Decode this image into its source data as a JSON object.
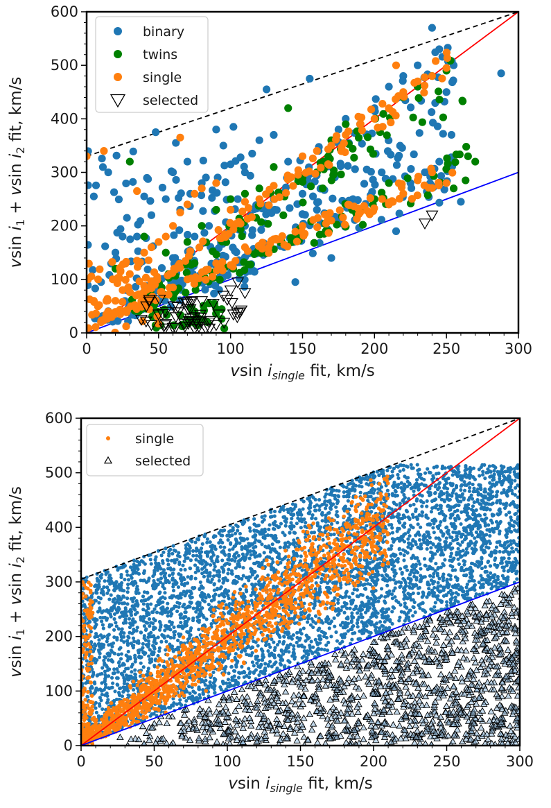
{
  "chart_data": [
    {
      "type": "scatter",
      "xlabel_main": "v",
      "xlabel_rest": "sin i",
      "xlabel_sub": "single",
      "xlabel_tail": " fit, km/s",
      "ylabel_parts": [
        "v",
        "sin i",
        "1",
        " + ",
        "v",
        "sin i",
        "2",
        " fit, km/s"
      ],
      "xlim": [
        0,
        300
      ],
      "ylim": [
        0,
        600
      ],
      "xticks": [
        "0",
        "50",
        "100",
        "150",
        "200",
        "250",
        "300"
      ],
      "yticks": [
        "0",
        "100",
        "200",
        "300",
        "400",
        "500",
        "600"
      ],
      "legend_position": "upper left",
      "legend": [
        {
          "label": "binary",
          "marker": "circle",
          "color": "#1f77b4"
        },
        {
          "label": "twins",
          "marker": "circle",
          "color": "#008000"
        },
        {
          "label": "single",
          "marker": "circle",
          "color": "#ff7f0e"
        },
        {
          "label": "selected",
          "marker": "triangle-down-open",
          "color": "#000000"
        }
      ],
      "lines": [
        {
          "name": "y=2x",
          "color": "#ff0000",
          "style": "solid",
          "points": [
            [
              0,
              0
            ],
            [
              300,
              600
            ]
          ]
        },
        {
          "name": "y=x",
          "color": "#0000ff",
          "style": "solid",
          "points": [
            [
              0,
              0
            ],
            [
              300,
              300
            ]
          ]
        },
        {
          "name": "upper bound",
          "color": "#000000",
          "style": "dashed",
          "points": [
            [
              0,
              330
            ],
            [
              300,
              600
            ]
          ]
        }
      ],
      "series": [
        {
          "name": "binary",
          "color": "#1f77b4",
          "points": [
            [
              5,
              255
            ],
            [
              10,
              95
            ],
            [
              15,
              300
            ],
            [
              20,
              150
            ],
            [
              25,
              180
            ],
            [
              28,
              215
            ],
            [
              35,
              180
            ],
            [
              40,
              255
            ],
            [
              45,
              220
            ],
            [
              48,
              375
            ],
            [
              55,
              250
            ],
            [
              60,
              300
            ],
            [
              62,
              355
            ],
            [
              65,
              230
            ],
            [
              70,
              320
            ],
            [
              72,
              260
            ],
            [
              80,
              280
            ],
            [
              85,
              200
            ],
            [
              90,
              380
            ],
            [
              95,
              350
            ],
            [
              100,
              315
            ],
            [
              102,
              385
            ],
            [
              105,
              250
            ],
            [
              110,
              300
            ],
            [
              115,
              335
            ],
            [
              120,
              360
            ],
            [
              125,
              455
            ],
            [
              130,
              370
            ],
            [
              140,
              320
            ],
            [
              145,
              95
            ],
            [
              150,
              260
            ],
            [
              155,
              475
            ],
            [
              160,
              300
            ],
            [
              170,
              140
            ],
            [
              175,
              380
            ],
            [
              180,
              400
            ],
            [
              190,
              390
            ],
            [
              200,
              420
            ],
            [
              210,
              460
            ],
            [
              215,
              190
            ],
            [
              220,
              480
            ],
            [
              230,
              500
            ],
            [
              240,
              570
            ],
            [
              245,
              530
            ],
            [
              250,
              450
            ],
            [
              255,
              500
            ],
            [
              260,
              245
            ],
            [
              288,
              485
            ],
            [
              60,
              140
            ],
            [
              75,
              180
            ],
            [
              110,
              200
            ],
            [
              130,
              250
            ],
            [
              160,
              230
            ],
            [
              185,
              250
            ],
            [
              205,
              300
            ],
            [
              225,
              280
            ],
            [
              235,
              300
            ],
            [
              245,
              320
            ]
          ]
        },
        {
          "name": "twins",
          "color": "#008000",
          "points": [
            [
              20,
              120
            ],
            [
              30,
              320
            ],
            [
              40,
              180
            ],
            [
              55,
              150
            ],
            [
              70,
              170
            ],
            [
              80,
              200
            ],
            [
              90,
              230
            ],
            [
              100,
              250
            ],
            [
              110,
              260
            ],
            [
              120,
              270
            ],
            [
              130,
              310
            ],
            [
              140,
              420
            ],
            [
              150,
              290
            ],
            [
              160,
              300
            ],
            [
              170,
              360
            ],
            [
              180,
              390
            ],
            [
              190,
              230
            ],
            [
              200,
              250
            ],
            [
              210,
              280
            ],
            [
              220,
              440
            ],
            [
              230,
              460
            ],
            [
              240,
              480
            ],
            [
              250,
              490
            ],
            [
              255,
              270
            ],
            [
              265,
              330
            ],
            [
              270,
              320
            ],
            [
              75,
              40
            ],
            [
              80,
              25
            ],
            [
              85,
              55
            ],
            [
              90,
              45
            ]
          ]
        },
        {
          "name": "single",
          "color": "#ff7f0e",
          "points": [
            [
              0,
              330
            ],
            [
              5,
              60
            ],
            [
              8,
              100
            ],
            [
              10,
              20
            ],
            [
              12,
              340
            ],
            [
              15,
              40
            ],
            [
              20,
              60
            ],
            [
              25,
              80
            ],
            [
              30,
              110
            ],
            [
              35,
              135
            ],
            [
              40,
              150
            ],
            [
              45,
              160
            ],
            [
              50,
              170
            ],
            [
              55,
              180
            ],
            [
              60,
              200
            ],
            [
              65,
              225
            ],
            [
              70,
              240
            ],
            [
              75,
              260
            ],
            [
              80,
              270
            ],
            [
              90,
              280
            ],
            [
              100,
              230
            ],
            [
              110,
              245
            ],
            [
              120,
              250
            ],
            [
              130,
              275
            ],
            [
              140,
              290
            ],
            [
              150,
              330
            ],
            [
              160,
              340
            ],
            [
              170,
              350
            ],
            [
              180,
              370
            ],
            [
              190,
              390
            ],
            [
              200,
              400
            ],
            [
              210,
              420
            ],
            [
              220,
              450
            ],
            [
              230,
              470
            ],
            [
              240,
              480
            ],
            [
              250,
              495
            ],
            [
              45,
              95
            ],
            [
              60,
              85
            ],
            [
              70,
              100
            ],
            [
              90,
              130
            ],
            [
              110,
              160
            ],
            [
              130,
              175
            ],
            [
              150,
              200
            ],
            [
              170,
              210
            ],
            [
              190,
              225
            ],
            [
              210,
              240
            ],
            [
              220,
              260
            ],
            [
              230,
              285
            ],
            [
              240,
              300
            ],
            [
              250,
              280
            ],
            [
              35,
              265
            ],
            [
              65,
              365
            ],
            [
              215,
              500
            ]
          ]
        },
        {
          "name": "selected",
          "color": "#000000",
          "points": [
            [
              38,
              25
            ],
            [
              45,
              15
            ],
            [
              50,
              35
            ],
            [
              55,
              40
            ],
            [
              62,
              30
            ],
            [
              68,
              18
            ],
            [
              72,
              45
            ],
            [
              75,
              30
            ],
            [
              78,
              12
            ],
            [
              85,
              20
            ],
            [
              88,
              55
            ],
            [
              92,
              35
            ],
            [
              95,
              70
            ],
            [
              100,
              80
            ],
            [
              105,
              95
            ],
            [
              110,
              75
            ],
            [
              235,
              205
            ],
            [
              240,
              220
            ],
            [
              60,
              10
            ],
            [
              70,
              55
            ],
            [
              80,
              60
            ],
            [
              90,
              15
            ]
          ]
        }
      ]
    },
    {
      "type": "scatter",
      "xlabel_main": "v",
      "xlabel_rest": "sin i",
      "xlabel_sub": "single",
      "xlabel_tail": " fit, km/s",
      "ylabel_parts": [
        "v",
        "sin i",
        "1",
        " + ",
        "v",
        "sin i",
        "2",
        " fit, km/s"
      ],
      "xlim": [
        0,
        300
      ],
      "ylim": [
        0,
        600
      ],
      "xticks": [
        "0",
        "50",
        "100",
        "150",
        "200",
        "250",
        "300"
      ],
      "yticks": [
        "0",
        "100",
        "200",
        "300",
        "400",
        "500",
        "600"
      ],
      "legend_position": "upper left",
      "legend": [
        {
          "label": "single",
          "marker": "small-circle",
          "color": "#ff7f0e"
        },
        {
          "label": "selected",
          "marker": "triangle-up-open",
          "color": "#000000"
        }
      ],
      "lines": [
        {
          "name": "y=2x",
          "color": "#ff0000",
          "style": "solid",
          "points": [
            [
              0,
              0
            ],
            [
              300,
              600
            ]
          ]
        },
        {
          "name": "y=x",
          "color": "#0000ff",
          "style": "solid",
          "points": [
            [
              0,
              0
            ],
            [
              300,
              300
            ]
          ]
        },
        {
          "name": "upper bound",
          "color": "#000000",
          "style": "dashed",
          "points": [
            [
              0,
              305
            ],
            [
              300,
              600
            ]
          ]
        }
      ],
      "regions": [
        {
          "name": "blue cloud",
          "color": "#1f77b4",
          "description": "dense blue points between y=x and upper bound, x 0-300"
        },
        {
          "name": "single",
          "color": "#ff7f0e",
          "description": "orange points clustered along y=2x, x 0-210"
        },
        {
          "name": "selected",
          "color": "#000000",
          "description": "triangles below y=x line"
        }
      ]
    }
  ]
}
